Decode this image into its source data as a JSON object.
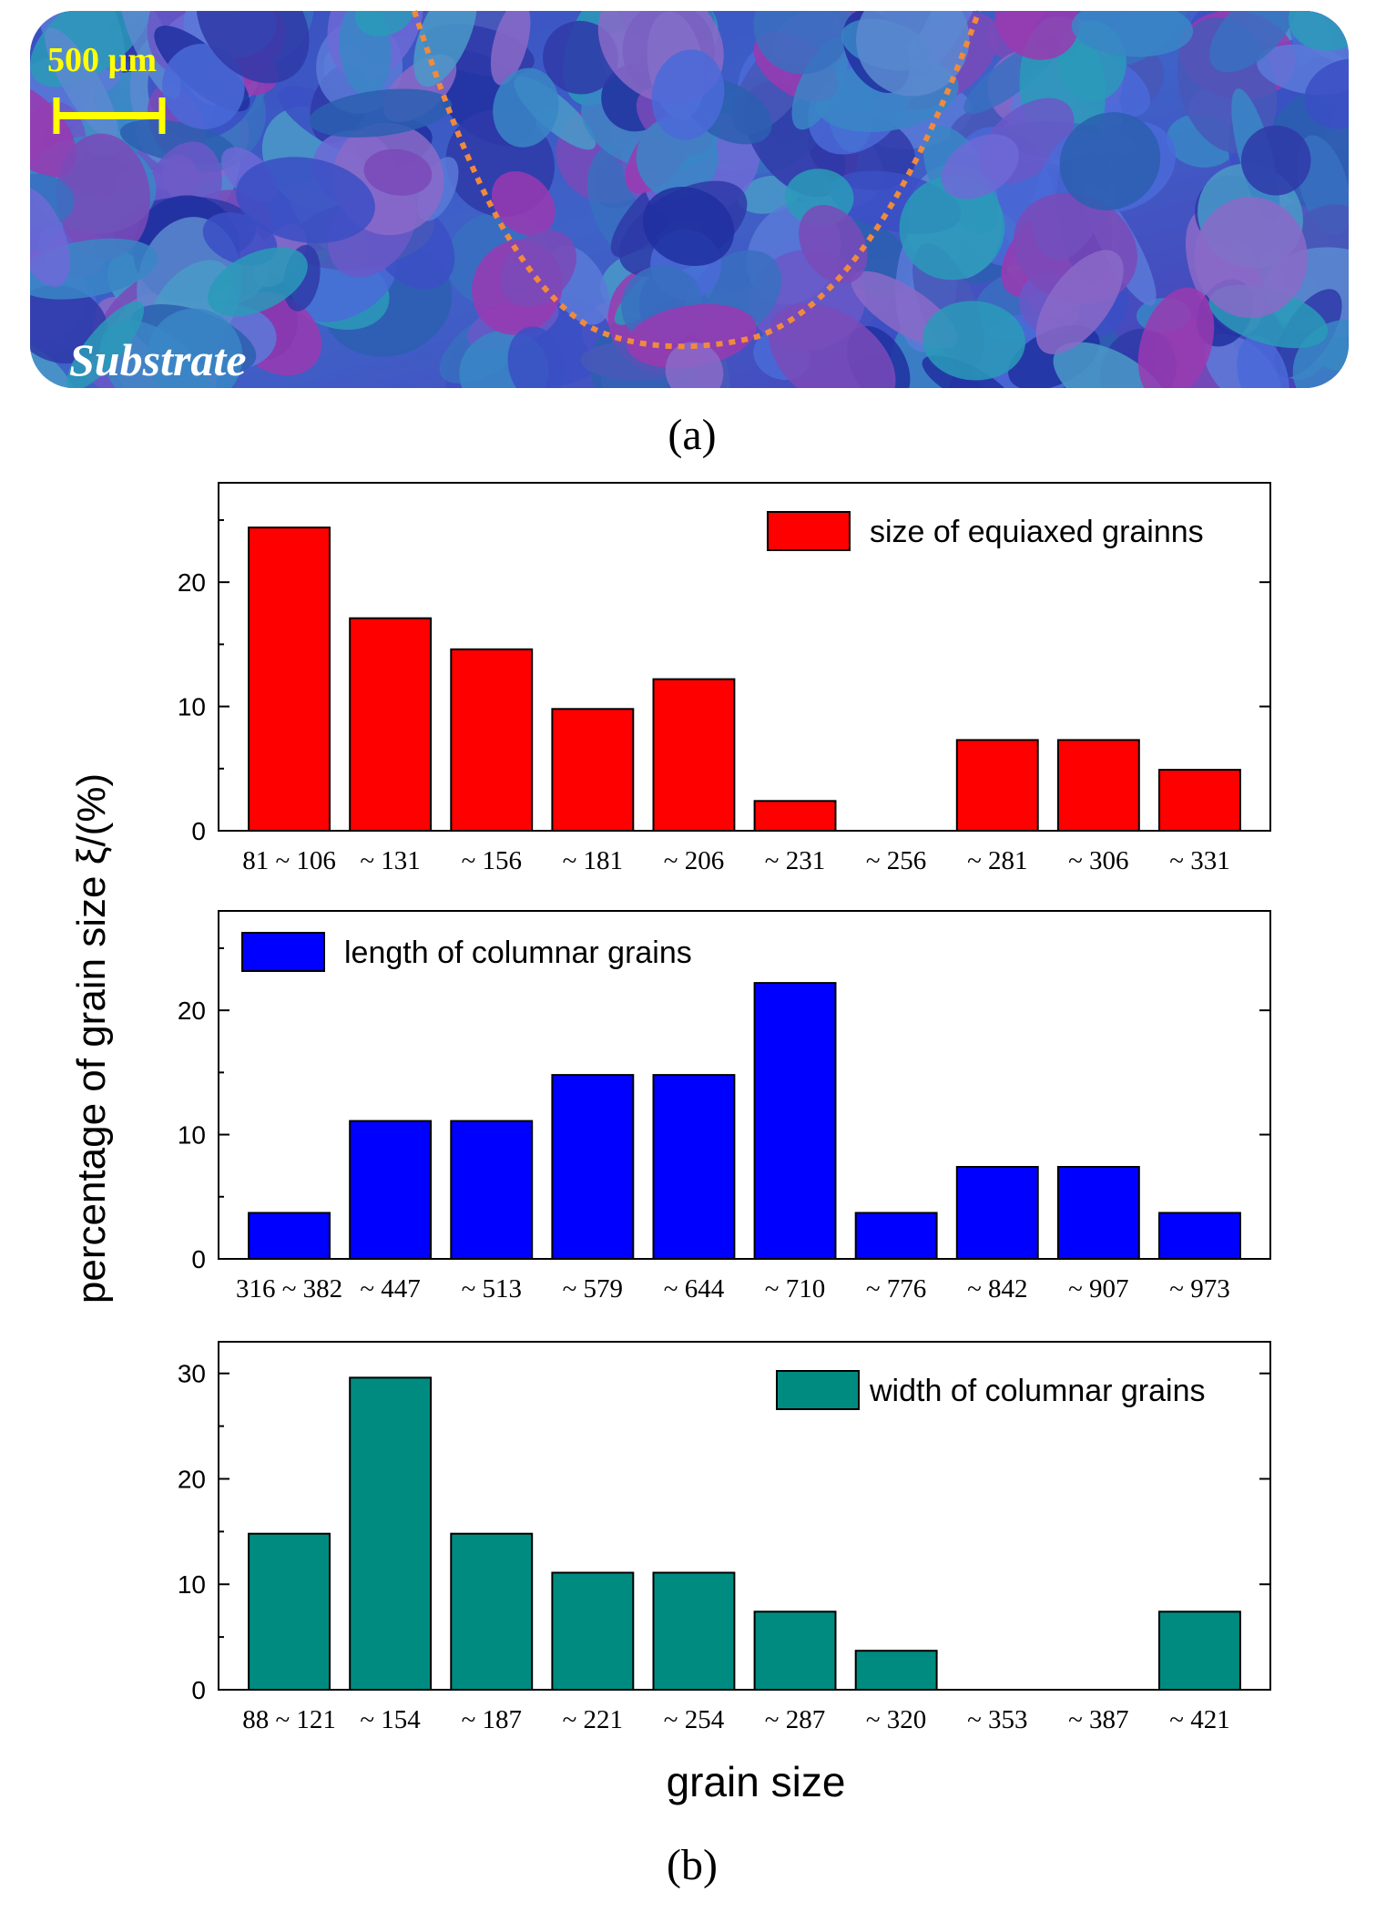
{
  "panel_a": {
    "scale_bar_label": "500 µm",
    "region_label": "Substrate",
    "caption": "(a)",
    "colors": {
      "scale_bar": "#ffff00",
      "melt_boundary": "#f08a3c",
      "label": "#ffffff"
    }
  },
  "panel_b": {
    "caption": "(b)",
    "ylabel": "percentage of grain size ξ/(%)",
    "xlabel": "grain size"
  },
  "chart_data": [
    {
      "type": "bar",
      "title": "",
      "legend": "size of equiaxed grainns",
      "legend_position": "top-right",
      "color": "#ff0000",
      "categories": [
        "81 ~ 106",
        "~ 131",
        "~ 156",
        "~ 181",
        "~ 206",
        "~ 231",
        "~ 256",
        "~ 281",
        "~ 306",
        "~ 331"
      ],
      "values": [
        24.4,
        17.1,
        14.6,
        9.8,
        12.2,
        2.4,
        0,
        7.3,
        7.3,
        4.9
      ],
      "yticks": [
        0,
        10,
        20
      ],
      "ylim": [
        0,
        28
      ]
    },
    {
      "type": "bar",
      "title": "",
      "legend": "length of columnar grains",
      "legend_position": "top-left",
      "color": "#0000ff",
      "categories": [
        "316 ~ 382",
        "~ 447",
        "~ 513",
        "~ 579",
        "~ 644",
        "~ 710",
        "~ 776",
        "~ 842",
        "~ 907",
        "~ 973"
      ],
      "values": [
        3.7,
        11.1,
        11.1,
        14.8,
        14.8,
        22.2,
        3.7,
        7.4,
        7.4,
        3.7
      ],
      "yticks": [
        0,
        10,
        20
      ],
      "ylim": [
        0,
        28
      ]
    },
    {
      "type": "bar",
      "title": "",
      "legend": "width of columnar grains",
      "legend_position": "top-right",
      "color": "#008b80",
      "categories": [
        "88 ~ 121",
        "~ 154",
        "~ 187",
        "~ 221",
        "~ 254",
        "~ 287",
        "~ 320",
        "~ 353",
        "~ 387",
        "~ 421"
      ],
      "values": [
        14.8,
        29.6,
        14.8,
        11.1,
        11.1,
        7.4,
        3.7,
        0,
        0,
        7.4
      ],
      "yticks": [
        0,
        10,
        20,
        30
      ],
      "ylim": [
        0,
        33
      ]
    }
  ]
}
